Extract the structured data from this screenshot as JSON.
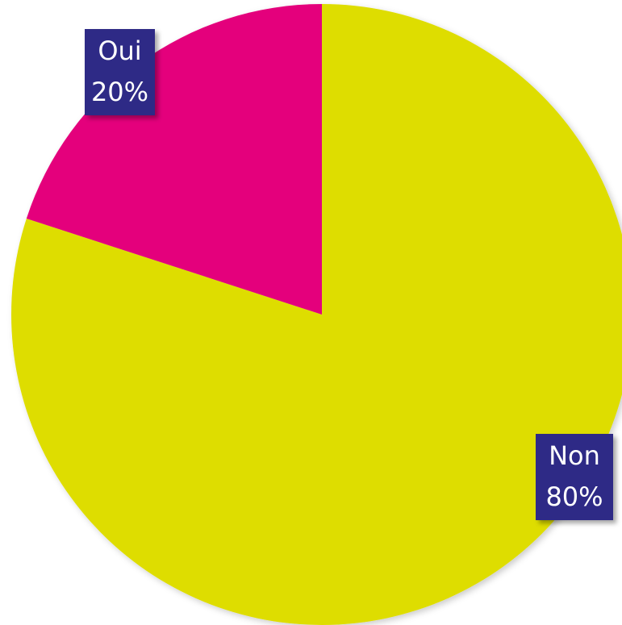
{
  "chart_data": {
    "type": "pie",
    "categories": [
      "Non",
      "Oui"
    ],
    "values": [
      80,
      20
    ],
    "value_labels": [
      "80%",
      "20%"
    ],
    "colors": [
      "#dedd00",
      "#e4007c"
    ],
    "label_color": "#2e2a86"
  }
}
